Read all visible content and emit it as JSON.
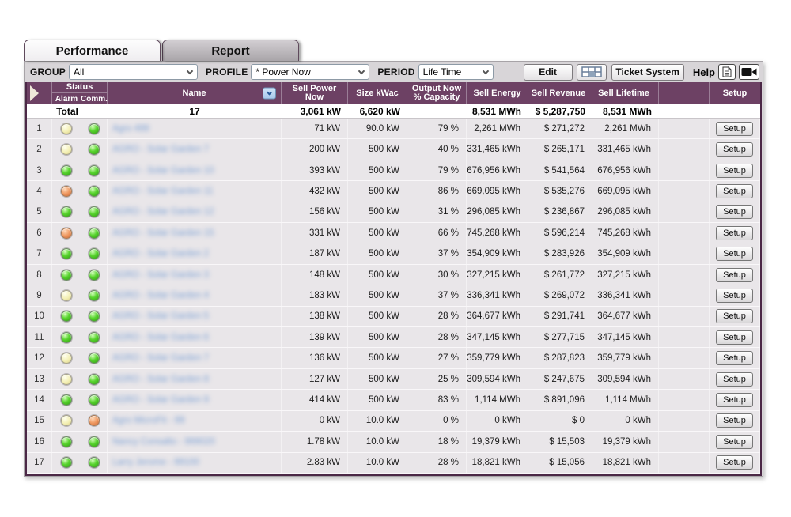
{
  "tabs": [
    {
      "label": "Performance",
      "active": true
    },
    {
      "label": "Report",
      "active": false
    }
  ],
  "toolbar": {
    "group_label": "GROUP",
    "group_value": "All",
    "profile_label": "PROFILE",
    "profile_value": "* Power Now",
    "period_label": "PERIOD",
    "period_value": "Life Time",
    "edit_label": "Edit",
    "ticket_label": "Ticket System",
    "help_label": "Help",
    "icons": [
      "grid-icon",
      "document-icon",
      "video-camera-icon"
    ]
  },
  "table": {
    "headers": {
      "status": "Status",
      "alarm": "Alarm",
      "comm": "Comm.",
      "name": "Name",
      "sell_power": "Sell Power Now",
      "size": "Size kWac",
      "output": "Output Now % Capacity",
      "sell_energy": "Sell Energy",
      "sell_revenue": "Sell Revenue",
      "sell_lifetime": "Sell Lifetime",
      "setup": "Setup"
    },
    "total": {
      "label": "Total",
      "count": "17",
      "sell_power": "3,061 kW",
      "size": "6,620 kW",
      "output": "",
      "sell_energy": "8,531 MWh",
      "sell_revenue": "$ 5,287,750",
      "sell_lifetime": "8,531 MWh"
    },
    "setup_button_label": "Setup",
    "rows": [
      {
        "num": "1",
        "alarm": "yellow",
        "comm": "green",
        "name": "Agro 499",
        "sell_power": "71 kW",
        "size": "90.0 kW",
        "output": "79 %",
        "sell_energy": "2,261 MWh",
        "sell_revenue": "$ 271,272",
        "sell_lifetime": "2,261 MWh"
      },
      {
        "num": "2",
        "alarm": "yellow",
        "comm": "green",
        "name": "AGRO - Solar Garden 7",
        "sell_power": "200 kW",
        "size": "500 kW",
        "output": "40 %",
        "sell_energy": "331,465 kWh",
        "sell_revenue": "$ 265,171",
        "sell_lifetime": "331,465 kWh"
      },
      {
        "num": "3",
        "alarm": "green",
        "comm": "green",
        "name": "AGRO - Solar Garden 10",
        "sell_power": "393 kW",
        "size": "500 kW",
        "output": "79 %",
        "sell_energy": "676,956 kWh",
        "sell_revenue": "$ 541,564",
        "sell_lifetime": "676,956 kWh"
      },
      {
        "num": "4",
        "alarm": "orange",
        "comm": "green",
        "name": "AGRO - Solar Garden 11",
        "sell_power": "432 kW",
        "size": "500 kW",
        "output": "86 %",
        "sell_energy": "669,095 kWh",
        "sell_revenue": "$ 535,276",
        "sell_lifetime": "669,095 kWh"
      },
      {
        "num": "5",
        "alarm": "green",
        "comm": "green",
        "name": "AGRO - Solar Garden 12",
        "sell_power": "156 kW",
        "size": "500 kW",
        "output": "31 %",
        "sell_energy": "296,085 kWh",
        "sell_revenue": "$ 236,867",
        "sell_lifetime": "296,085 kWh"
      },
      {
        "num": "6",
        "alarm": "orange",
        "comm": "green",
        "name": "AGRO - Solar Garden 15",
        "sell_power": "331 kW",
        "size": "500 kW",
        "output": "66 %",
        "sell_energy": "745,268 kWh",
        "sell_revenue": "$ 596,214",
        "sell_lifetime": "745,268 kWh"
      },
      {
        "num": "7",
        "alarm": "green",
        "comm": "green",
        "name": "AGRO - Solar Garden 2",
        "sell_power": "187 kW",
        "size": "500 kW",
        "output": "37 %",
        "sell_energy": "354,909 kWh",
        "sell_revenue": "$ 283,926",
        "sell_lifetime": "354,909 kWh"
      },
      {
        "num": "8",
        "alarm": "green",
        "comm": "green",
        "name": "AGRO - Solar Garden 3",
        "sell_power": "148 kW",
        "size": "500 kW",
        "output": "30 %",
        "sell_energy": "327,215 kWh",
        "sell_revenue": "$ 261,772",
        "sell_lifetime": "327,215 kWh"
      },
      {
        "num": "9",
        "alarm": "yellow",
        "comm": "green",
        "name": "AGRO - Solar Garden 4",
        "sell_power": "183 kW",
        "size": "500 kW",
        "output": "37 %",
        "sell_energy": "336,341 kWh",
        "sell_revenue": "$ 269,072",
        "sell_lifetime": "336,341 kWh"
      },
      {
        "num": "10",
        "alarm": "green",
        "comm": "green",
        "name": "AGRO - Solar Garden 5",
        "sell_power": "138 kW",
        "size": "500 kW",
        "output": "28 %",
        "sell_energy": "364,677 kWh",
        "sell_revenue": "$ 291,741",
        "sell_lifetime": "364,677 kWh"
      },
      {
        "num": "11",
        "alarm": "green",
        "comm": "green",
        "name": "AGRO - Solar Garden 6",
        "sell_power": "139 kW",
        "size": "500 kW",
        "output": "28 %",
        "sell_energy": "347,145 kWh",
        "sell_revenue": "$ 277,715",
        "sell_lifetime": "347,145 kWh"
      },
      {
        "num": "12",
        "alarm": "yellow",
        "comm": "green",
        "name": "AGRO - Solar Garden 7",
        "sell_power": "136 kW",
        "size": "500 kW",
        "output": "27 %",
        "sell_energy": "359,779 kWh",
        "sell_revenue": "$ 287,823",
        "sell_lifetime": "359,779 kWh"
      },
      {
        "num": "13",
        "alarm": "yellow",
        "comm": "green",
        "name": "AGRO - Solar Garden 8",
        "sell_power": "127 kW",
        "size": "500 kW",
        "output": "25 %",
        "sell_energy": "309,594 kWh",
        "sell_revenue": "$ 247,675",
        "sell_lifetime": "309,594 kWh"
      },
      {
        "num": "14",
        "alarm": "green",
        "comm": "green",
        "name": "AGRO - Solar Garden 9",
        "sell_power": "414 kW",
        "size": "500 kW",
        "output": "83 %",
        "sell_energy": "1,114 MWh",
        "sell_revenue": "$ 891,096",
        "sell_lifetime": "1,114 MWh"
      },
      {
        "num": "15",
        "alarm": "yellow",
        "comm": "orange",
        "name": "Agro MicroFit - 99",
        "sell_power": "0 kW",
        "size": "10.0 kW",
        "output": "0 %",
        "sell_energy": "0 kWh",
        "sell_revenue": "$ 0",
        "sell_lifetime": "0 kWh"
      },
      {
        "num": "16",
        "alarm": "green",
        "comm": "green",
        "name": "Nancy Consalto - 999020",
        "sell_power": "1.78 kW",
        "size": "10.0 kW",
        "output": "18 %",
        "sell_energy": "19,379 kWh",
        "sell_revenue": "$ 15,503",
        "sell_lifetime": "19,379 kWh"
      },
      {
        "num": "17",
        "alarm": "green",
        "comm": "green",
        "name": "Larry Jerome - 99100",
        "sell_power": "2.83 kW",
        "size": "10.0 kW",
        "output": "28 %",
        "sell_energy": "18,821 kWh",
        "sell_revenue": "$ 15,056",
        "sell_lifetime": "18,821 kWh"
      }
    ]
  },
  "colors": {
    "header_purple": "#6d4164",
    "table_border": "#4b2846",
    "status_green": "#58d42e",
    "status_yellow": "#f3efb4",
    "status_orange": "#ef9961",
    "row_bg": "#e9e6e9"
  }
}
